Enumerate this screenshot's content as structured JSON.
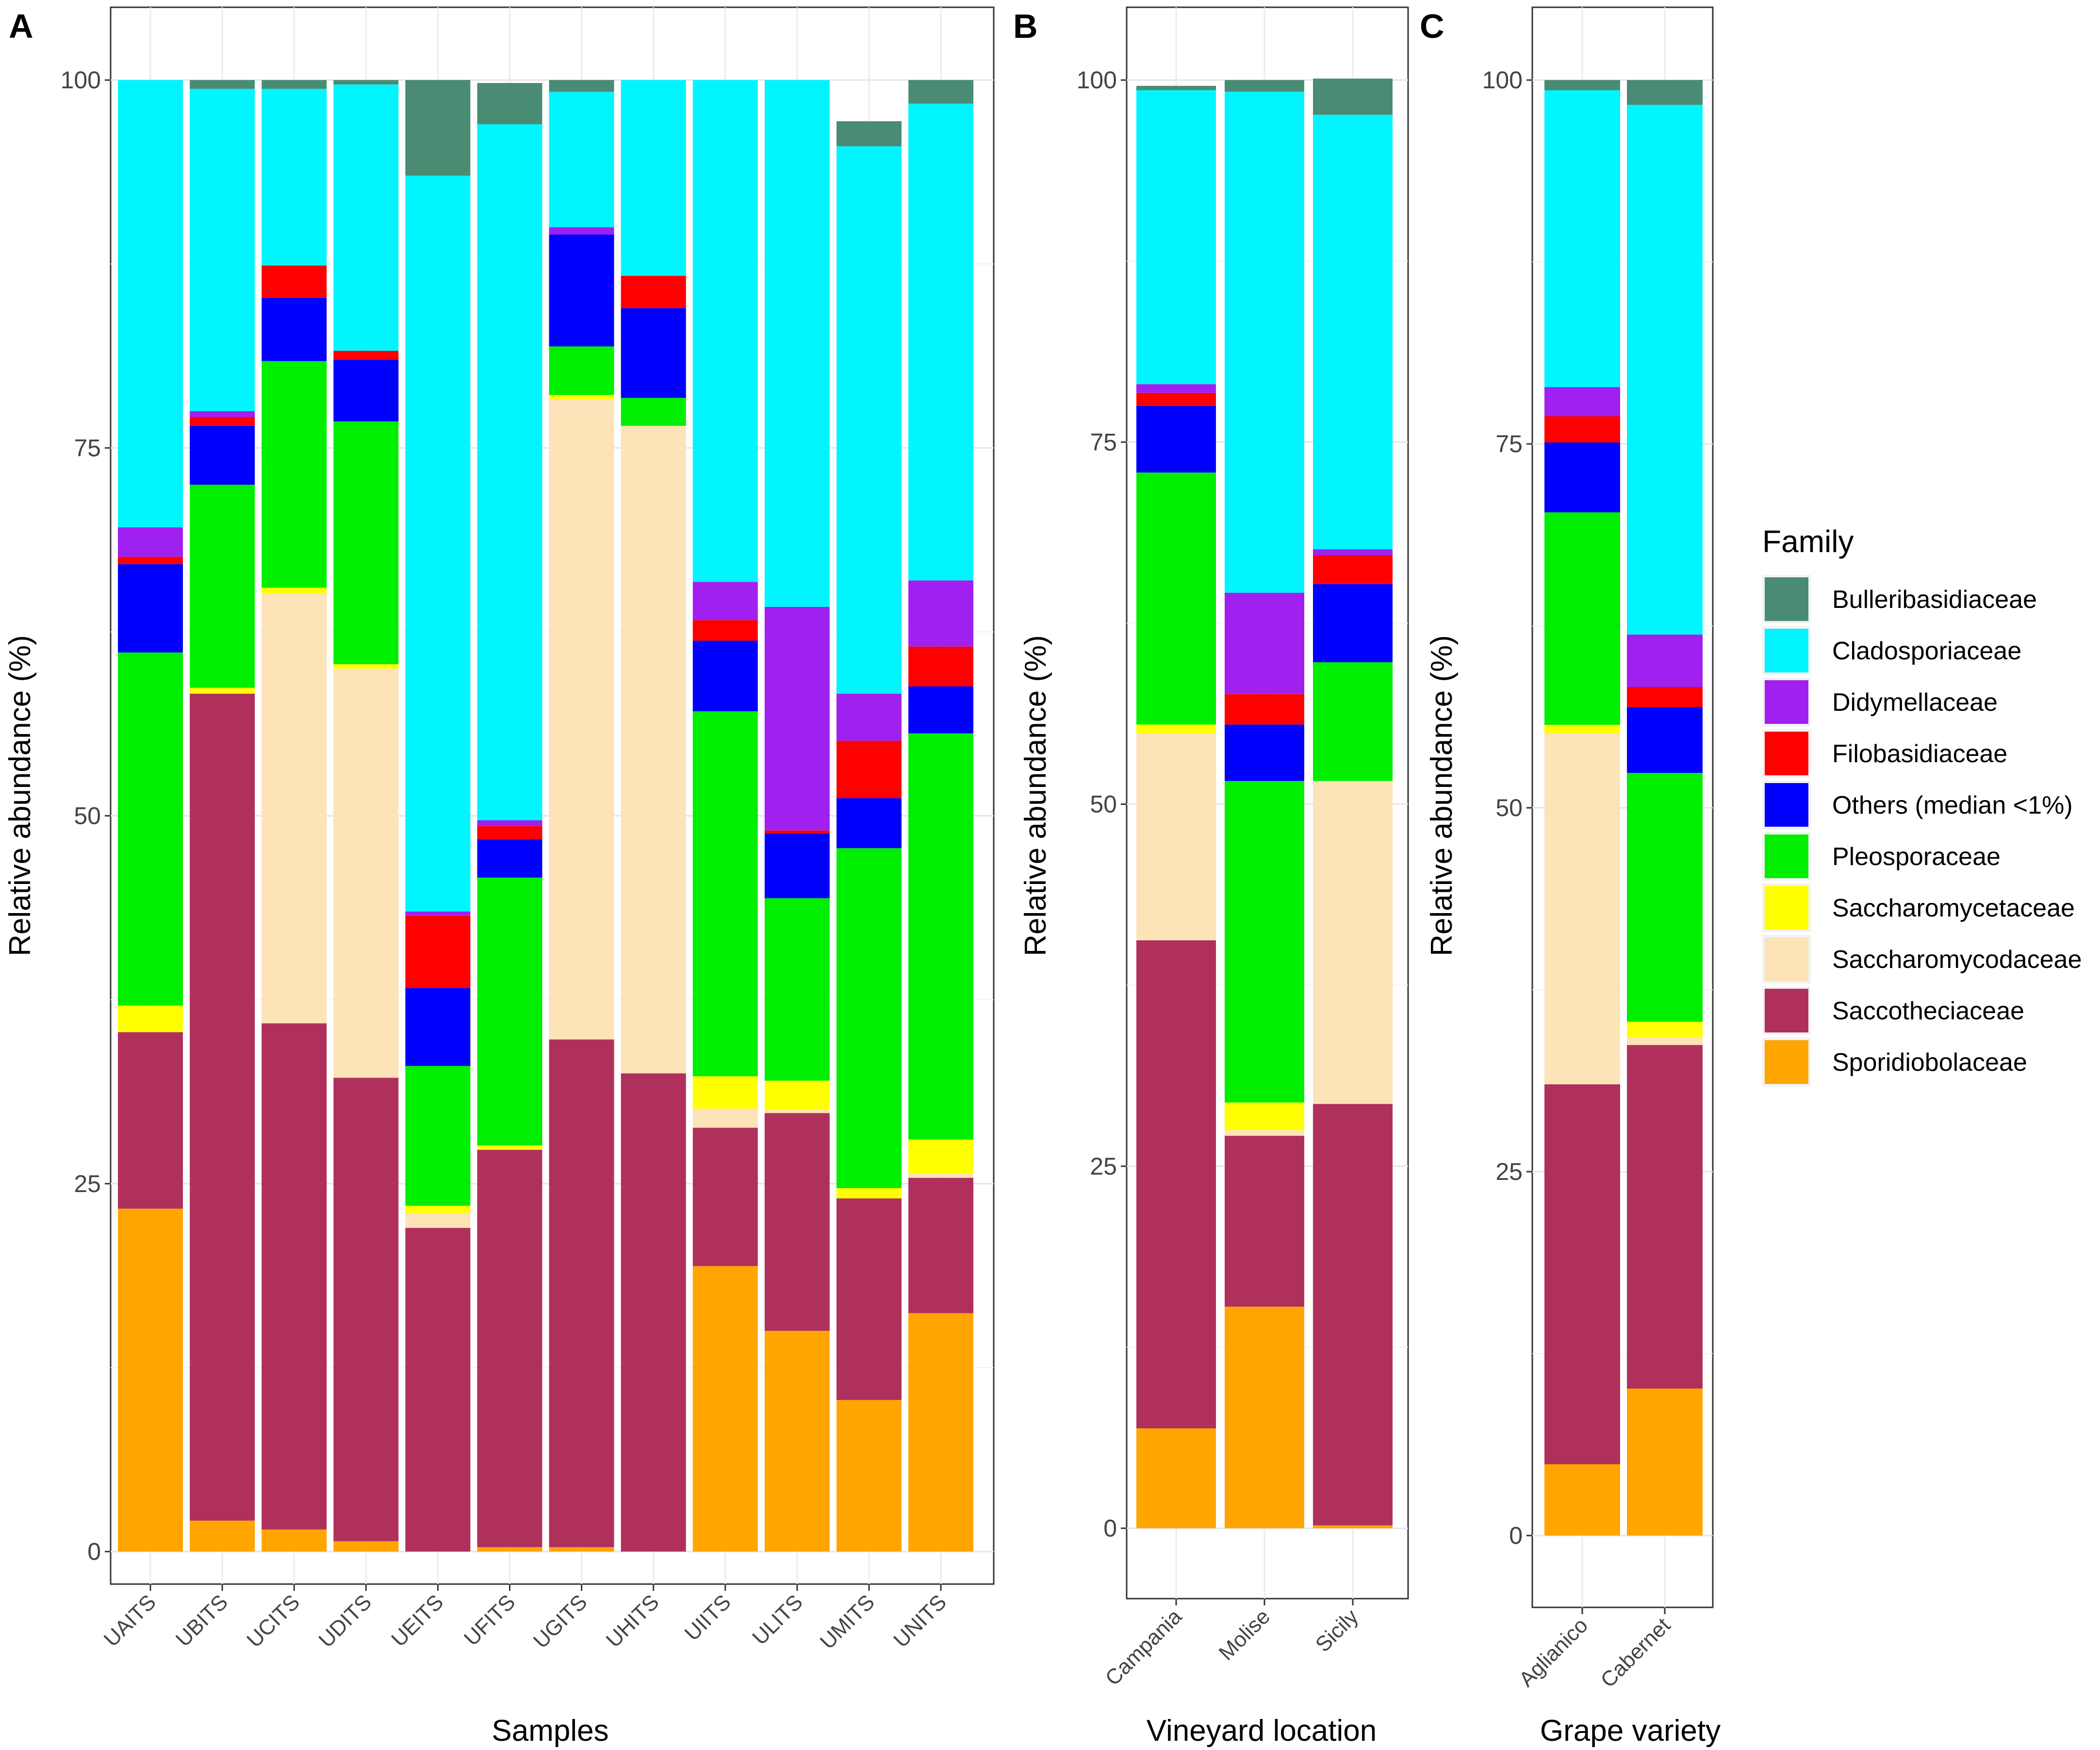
{
  "families": [
    {
      "name": "Bulleribasidiaceae",
      "color": "#4A8B73"
    },
    {
      "name": "Cladosporiaceae",
      "color": "#00F5FF"
    },
    {
      "name": "Didymellaceae",
      "color": "#A020F0"
    },
    {
      "name": "Filobasidiaceae",
      "color": "#FF0000"
    },
    {
      "name": "Others (median <1%)",
      "color": "#0000FF"
    },
    {
      "name": "Pleosporaceae",
      "color": "#00EE00"
    },
    {
      "name": "Saccharomycetaceae",
      "color": "#FFFF00"
    },
    {
      "name": "Saccharomycodaceae",
      "color": "#FCE3B8"
    },
    {
      "name": "Saccotheciaceae",
      "color": "#B0305C"
    },
    {
      "name": "Sporidiobolaceae",
      "color": "#FFA500"
    }
  ],
  "legend": {
    "title": "Family"
  },
  "chart_data": [
    {
      "type": "bar",
      "stacked": true,
      "panel": "A",
      "xlabel": "Samples",
      "ylabel": "Relative abundance (%)",
      "ylim": [
        0,
        100
      ],
      "yticks": [
        "0",
        "25",
        "50",
        "75",
        "100"
      ],
      "categories": [
        "UAITS",
        "UBITS",
        "UCITS",
        "UDITS",
        "UEITS",
        "UFITS",
        "UGITS",
        "UHITS",
        "UIITS",
        "ULITS",
        "UMITS",
        "UNITS"
      ],
      "series": [
        {
          "name": "Sporidiobolaceae",
          "values": [
            23.3,
            2.1,
            1.5,
            0.7,
            0.0,
            0.3,
            0.3,
            0.0,
            19.4,
            15.0,
            10.3,
            16.2
          ]
        },
        {
          "name": "Saccotheciaceae",
          "values": [
            12.0,
            56.2,
            34.4,
            31.5,
            22.0,
            27.0,
            34.5,
            32.5,
            9.4,
            14.8,
            13.7,
            9.2
          ]
        },
        {
          "name": "Saccharomycodaceae",
          "values": [
            0.0,
            0.0,
            29.2,
            27.8,
            1.0,
            0.0,
            43.5,
            44.0,
            1.3,
            0.2,
            0.0,
            0.3
          ]
        },
        {
          "name": "Saccharomycetaceae",
          "values": [
            1.8,
            0.4,
            0.4,
            0.3,
            0.5,
            0.3,
            0.3,
            0.0,
            2.2,
            2.0,
            0.7,
            2.3
          ]
        },
        {
          "name": "Pleosporaceae",
          "values": [
            24.0,
            13.8,
            15.4,
            16.5,
            9.5,
            18.2,
            3.3,
            1.9,
            24.8,
            12.4,
            23.1,
            27.6
          ]
        },
        {
          "name": "Others (median <1%)",
          "values": [
            6.0,
            4.0,
            4.3,
            4.2,
            5.3,
            2.6,
            7.6,
            6.1,
            4.8,
            4.4,
            3.4,
            3.2
          ]
        },
        {
          "name": "Filobasidiaceae",
          "values": [
            0.5,
            0.6,
            2.2,
            0.6,
            4.9,
            0.9,
            0.0,
            2.2,
            1.4,
            0.2,
            3.9,
            2.7
          ]
        },
        {
          "name": "Didymellaceae",
          "values": [
            2.0,
            0.4,
            0.0,
            0.0,
            0.3,
            0.4,
            0.5,
            0.0,
            2.6,
            15.2,
            3.2,
            4.5
          ]
        },
        {
          "name": "Cladosporiaceae",
          "values": [
            30.4,
            21.9,
            12.0,
            18.1,
            50.0,
            47.3,
            9.2,
            13.3,
            34.1,
            35.8,
            37.2,
            32.4
          ]
        },
        {
          "name": "Bulleribasidiaceae",
          "values": [
            0.0,
            0.6,
            0.6,
            0.3,
            6.5,
            2.8,
            0.8,
            0.0,
            0.0,
            0.0,
            1.7,
            1.6
          ]
        }
      ]
    },
    {
      "type": "bar",
      "stacked": true,
      "panel": "B",
      "xlabel": "Vineyard location",
      "ylabel": "Relative abundance (%)",
      "ylim": [
        0,
        100
      ],
      "yticks": [
        "0",
        "25",
        "50",
        "75",
        "100"
      ],
      "categories": [
        "Campania",
        "Molise",
        "Sicily"
      ],
      "series": [
        {
          "name": "Sporidiobolaceae",
          "values": [
            6.9,
            15.3,
            0.2
          ]
        },
        {
          "name": "Saccotheciaceae",
          "values": [
            33.7,
            11.8,
            29.1
          ]
        },
        {
          "name": "Saccharomycodaceae",
          "values": [
            14.3,
            0.4,
            22.3
          ]
        },
        {
          "name": "Saccharomycetaceae",
          "values": [
            0.6,
            1.9,
            0.0
          ]
        },
        {
          "name": "Pleosporaceae",
          "values": [
            17.4,
            22.2,
            8.2
          ]
        },
        {
          "name": "Others (median <1%)",
          "values": [
            4.6,
            3.9,
            5.4
          ]
        },
        {
          "name": "Filobasidiaceae",
          "values": [
            0.9,
            2.1,
            2.0
          ]
        },
        {
          "name": "Didymellaceae",
          "values": [
            0.6,
            7.0,
            0.4
          ]
        },
        {
          "name": "Cladosporiaceae",
          "values": [
            20.3,
            34.6,
            30.0
          ]
        },
        {
          "name": "Bulleribasidiaceae",
          "values": [
            0.3,
            0.8,
            2.5
          ]
        }
      ]
    },
    {
      "type": "bar",
      "stacked": true,
      "panel": "C",
      "xlabel": "Grape variety",
      "ylabel": "Relative abundance (%)",
      "ylim": [
        0,
        100
      ],
      "yticks": [
        "0",
        "25",
        "50",
        "75",
        "100"
      ],
      "categories": [
        "Aglianico",
        "Cabernet"
      ],
      "series": [
        {
          "name": "Sporidiobolaceae",
          "values": [
            4.9,
            10.1
          ]
        },
        {
          "name": "Saccotheciaceae",
          "values": [
            26.1,
            23.6
          ]
        },
        {
          "name": "Saccharomycodaceae",
          "values": [
            24.1,
            0.5
          ]
        },
        {
          "name": "Saccharomycetaceae",
          "values": [
            0.6,
            1.1
          ]
        },
        {
          "name": "Pleosporaceae",
          "values": [
            14.6,
            17.1
          ]
        },
        {
          "name": "Others (median <1%)",
          "values": [
            4.8,
            4.5
          ]
        },
        {
          "name": "Filobasidiaceae",
          "values": [
            1.8,
            1.4
          ]
        },
        {
          "name": "Didymellaceae",
          "values": [
            2.0,
            3.6
          ]
        },
        {
          "name": "Cladosporiaceae",
          "values": [
            20.4,
            36.4
          ]
        },
        {
          "name": "Bulleribasidiaceae",
          "values": [
            0.7,
            1.7
          ]
        }
      ]
    }
  ]
}
